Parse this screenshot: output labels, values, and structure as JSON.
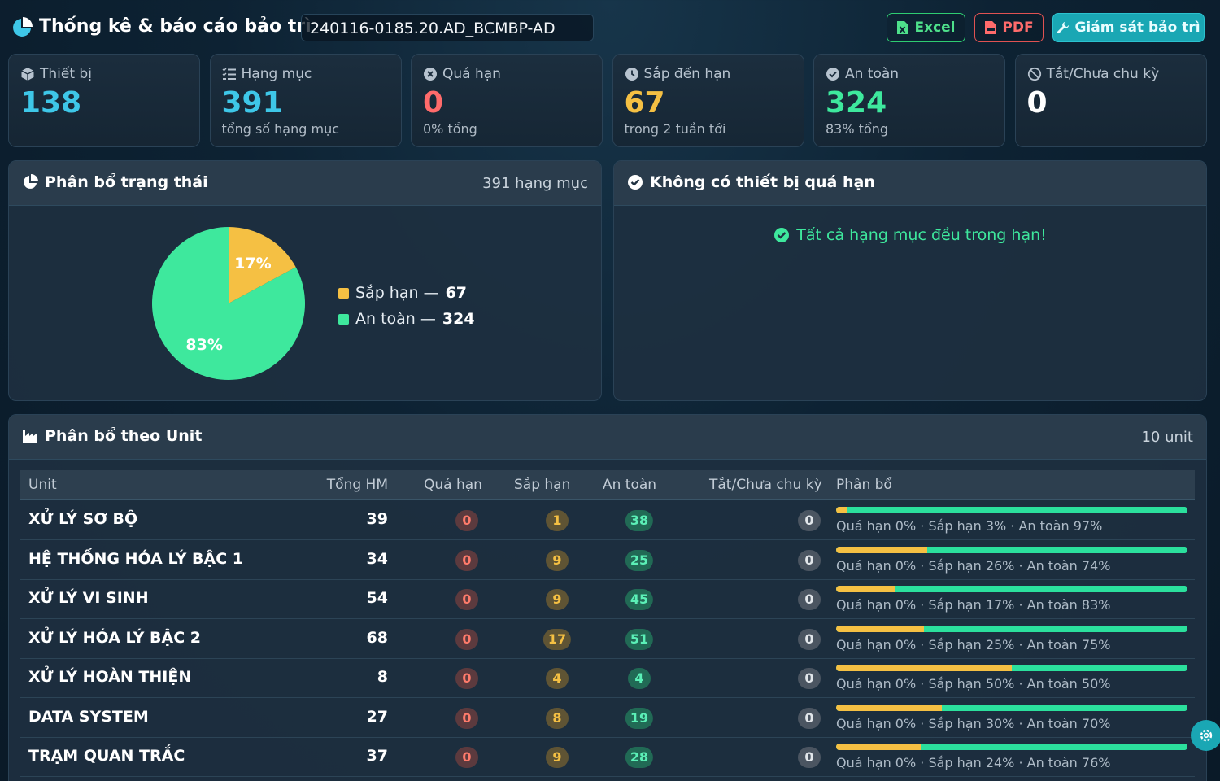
{
  "header": {
    "title": "Thống kê & báo cáo bảo trì",
    "code": "240116-0185.20.AD_BCMBP-AD",
    "buttons": {
      "excel": "Excel",
      "pdf": "PDF",
      "monitor": "Giám sát bảo trì"
    }
  },
  "stats": [
    {
      "key": "devices",
      "label": "Thiết bị",
      "value": "138",
      "sub": "",
      "color": "#3ec7e8",
      "icon": "box-icon"
    },
    {
      "key": "items",
      "label": "Hạng mục",
      "value": "391",
      "sub": "tổng số hạng mục",
      "color": "#3ec7e8",
      "icon": "list-icon"
    },
    {
      "key": "overdue",
      "label": "Quá hạn",
      "value": "0",
      "sub": "0% tổng",
      "color": "#ff6b6b",
      "icon": "x-circle-icon"
    },
    {
      "key": "upcoming",
      "label": "Sắp đến hạn",
      "value": "67",
      "sub": "trong 2 tuần tới",
      "color": "#f5c043",
      "icon": "clock-icon"
    },
    {
      "key": "safe",
      "label": "An toàn",
      "value": "324",
      "sub": "83% tổng",
      "color": "#3ee89d",
      "icon": "check-circle-icon"
    },
    {
      "key": "off",
      "label": "Tắt/Chưa chu kỳ",
      "value": "0",
      "sub": "",
      "color": "#ffffff",
      "icon": "ban-icon"
    }
  ],
  "status_panel": {
    "title": "Phân bổ trạng thái",
    "meta": "391 hạng mục",
    "legend": [
      {
        "label": "Sắp hạn — ",
        "value": "67",
        "color": "#f5c043"
      },
      {
        "label": "An toàn — ",
        "value": "324",
        "color": "#3ee89d"
      }
    ]
  },
  "chart_data": {
    "type": "pie",
    "categories": [
      "Sắp hạn",
      "An toàn"
    ],
    "values": [
      67,
      324
    ],
    "labels": [
      "17%",
      "83%"
    ],
    "colors": [
      "#f5c043",
      "#3ee89d"
    ]
  },
  "overdue_panel": {
    "title": "Không có thiết bị quá hạn",
    "message": "Tất cả hạng mục đều trong hạn!"
  },
  "unit_panel": {
    "title": "Phân bổ theo Unit",
    "meta": "10 unit",
    "columns": [
      "Unit",
      "Tổng HM",
      "Quá hạn",
      "Sắp hạn",
      "An toàn",
      "Tắt/Chưa chu kỳ",
      "Phân bổ"
    ],
    "rows": [
      {
        "unit": "XỬ LÝ SƠ BỘ",
        "total": "39",
        "overdue": "0",
        "upcoming": "1",
        "safe": "38",
        "off": "0",
        "pct_overdue": 0,
        "pct_upcoming": 3,
        "pct_safe": 97,
        "dist": "Quá hạn 0% · Sắp hạn 3% · An toàn 97%"
      },
      {
        "unit": "HỆ THỐNG HÓA LÝ BẬC 1",
        "total": "34",
        "overdue": "0",
        "upcoming": "9",
        "safe": "25",
        "off": "0",
        "pct_overdue": 0,
        "pct_upcoming": 26,
        "pct_safe": 74,
        "dist": "Quá hạn 0% · Sắp hạn 26% · An toàn 74%"
      },
      {
        "unit": "XỬ LÝ VI SINH",
        "total": "54",
        "overdue": "0",
        "upcoming": "9",
        "safe": "45",
        "off": "0",
        "pct_overdue": 0,
        "pct_upcoming": 17,
        "pct_safe": 83,
        "dist": "Quá hạn 0% · Sắp hạn 17% · An toàn 83%"
      },
      {
        "unit": "XỬ LÝ HÓA LÝ BẬC 2",
        "total": "68",
        "overdue": "0",
        "upcoming": "17",
        "safe": "51",
        "off": "0",
        "pct_overdue": 0,
        "pct_upcoming": 25,
        "pct_safe": 75,
        "dist": "Quá hạn 0% · Sắp hạn 25% · An toàn 75%"
      },
      {
        "unit": "XỬ LÝ HOÀN THIỆN",
        "total": "8",
        "overdue": "0",
        "upcoming": "4",
        "safe": "4",
        "off": "0",
        "pct_overdue": 0,
        "pct_upcoming": 50,
        "pct_safe": 50,
        "dist": "Quá hạn 0% · Sắp hạn 50% · An toàn 50%"
      },
      {
        "unit": "DATA SYSTEM",
        "total": "27",
        "overdue": "0",
        "upcoming": "8",
        "safe": "19",
        "off": "0",
        "pct_overdue": 0,
        "pct_upcoming": 30,
        "pct_safe": 70,
        "dist": "Quá hạn 0% · Sắp hạn 30% · An toàn 70%"
      },
      {
        "unit": "TRẠM QUAN TRẮC",
        "total": "37",
        "overdue": "0",
        "upcoming": "9",
        "safe": "28",
        "off": "0",
        "pct_overdue": 0,
        "pct_upcoming": 24,
        "pct_safe": 76,
        "dist": "Quá hạn 0% · Sắp hạn 24% · An toàn 76%"
      }
    ]
  },
  "colors": {
    "overdue": "#ff6b6b",
    "upcoming": "#f5c043",
    "safe": "#2be09d",
    "accent": "#1aa7b4"
  }
}
